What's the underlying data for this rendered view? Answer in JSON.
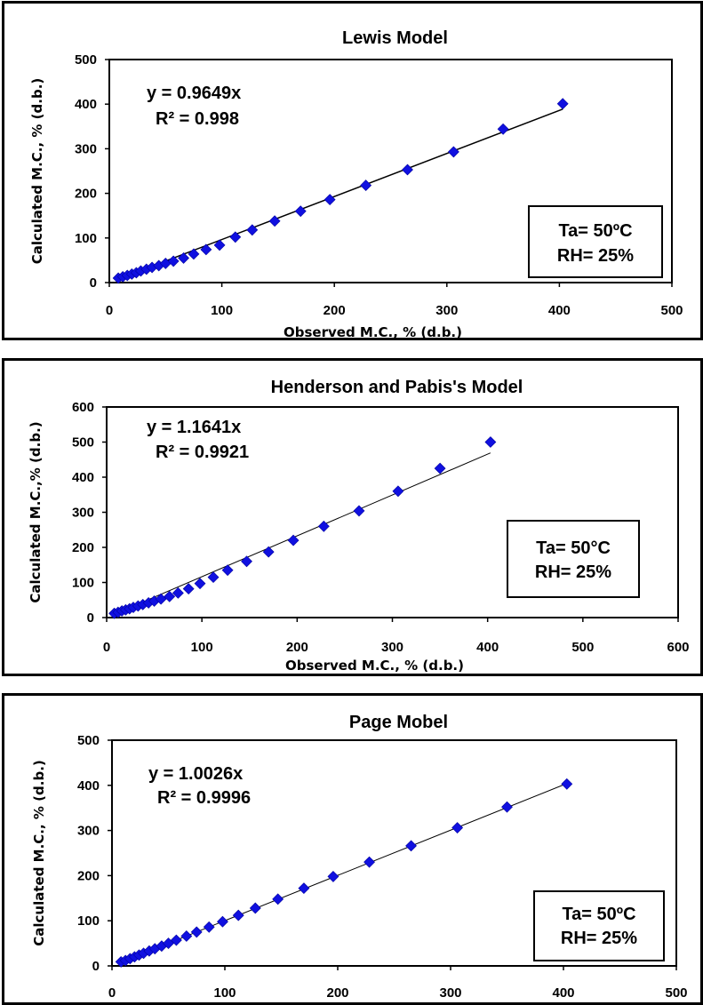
{
  "chart_data": [
    {
      "type": "scatter",
      "title": "Lewis Model",
      "xlabel": "Observed M.C., % (d.b.)",
      "ylabel": "Calculated M.C., % (d.b.)",
      "xlim": [
        0,
        500
      ],
      "ylim": [
        0,
        500
      ],
      "xticks": [
        "0",
        "100",
        "200",
        "300",
        "400",
        "500"
      ],
      "yticks": [
        "0",
        "100",
        "200",
        "300",
        "400",
        "500"
      ],
      "grid": false,
      "trendline_slope": 0.9649,
      "equation": "y = 0.9649x",
      "r_squared": "R² = 0.998",
      "condition_lines": [
        "Ta= 50ºC",
        "RH= 25%"
      ],
      "marker_color": "#1010e0",
      "series": [
        {
          "x": [
            8,
            12,
            16,
            20,
            24,
            28,
            33,
            38,
            44,
            50,
            57,
            66,
            75,
            86,
            98,
            112,
            127,
            147,
            170,
            196,
            228,
            265,
            306,
            350,
            403
          ],
          "y": [
            10,
            13,
            16,
            19,
            22,
            26,
            30,
            34,
            38,
            43,
            48,
            55,
            64,
            74,
            84,
            102,
            118,
            138,
            160,
            186,
            218,
            253,
            293,
            344,
            401
          ]
        }
      ]
    },
    {
      "type": "scatter",
      "title": "Henderson and Pabis's Model",
      "xlabel": "Observed M.C., % (d.b.)",
      "ylabel": "Calculated M.C.,% (d.b.)",
      "xlim": [
        0,
        600
      ],
      "ylim": [
        0,
        600
      ],
      "xticks": [
        "0",
        "100",
        "200",
        "300",
        "400",
        "500",
        "600"
      ],
      "yticks": [
        "0",
        "100",
        "200",
        "300",
        "400",
        "500",
        "600"
      ],
      "grid": false,
      "trendline_slope": 1.1641,
      "equation": "y = 1.1641x",
      "r_squared": "R² = 0.9921",
      "condition_lines": [
        "Ta= 50°C",
        "RH= 25%"
      ],
      "marker_color": "#1010e0",
      "series": [
        {
          "x": [
            8,
            12,
            16,
            20,
            24,
            28,
            33,
            38,
            44,
            50,
            57,
            66,
            75,
            86,
            98,
            112,
            127,
            147,
            170,
            196,
            228,
            265,
            306,
            350,
            403
          ],
          "y": [
            12,
            15,
            19,
            22,
            25,
            29,
            33,
            37,
            42,
            47,
            53,
            60,
            70,
            82,
            97,
            115,
            135,
            160,
            187,
            220,
            260,
            304,
            360,
            425,
            500
          ]
        }
      ]
    },
    {
      "type": "scatter",
      "title": "Page Mobel",
      "xlabel": "Observed M.C., % (d.b.)",
      "ylabel": "Calculated M.C., % (d.b.)",
      "xlim": [
        0,
        500
      ],
      "ylim": [
        0,
        500
      ],
      "xticks": [
        "0",
        "100",
        "200",
        "300",
        "400",
        "500"
      ],
      "yticks": [
        "0",
        "100",
        "200",
        "300",
        "400",
        "500"
      ],
      "grid": false,
      "trendline_slope": 1.0026,
      "equation": "y = 1.0026x",
      "r_squared": "R² = 0.9996",
      "condition_lines": [
        "Ta= 50ºC",
        "RH= 25%"
      ],
      "marker_color": "#1010e0",
      "series": [
        {
          "x": [
            8,
            12,
            16,
            20,
            24,
            28,
            33,
            38,
            44,
            50,
            57,
            66,
            75,
            86,
            98,
            112,
            127,
            147,
            170,
            196,
            228,
            265,
            306,
            350,
            403
          ],
          "y": [
            9,
            12,
            16,
            20,
            24,
            28,
            33,
            38,
            44,
            50,
            57,
            66,
            75,
            86,
            98,
            112,
            128,
            148,
            172,
            198,
            230,
            266,
            306,
            352,
            403
          ]
        }
      ]
    }
  ]
}
